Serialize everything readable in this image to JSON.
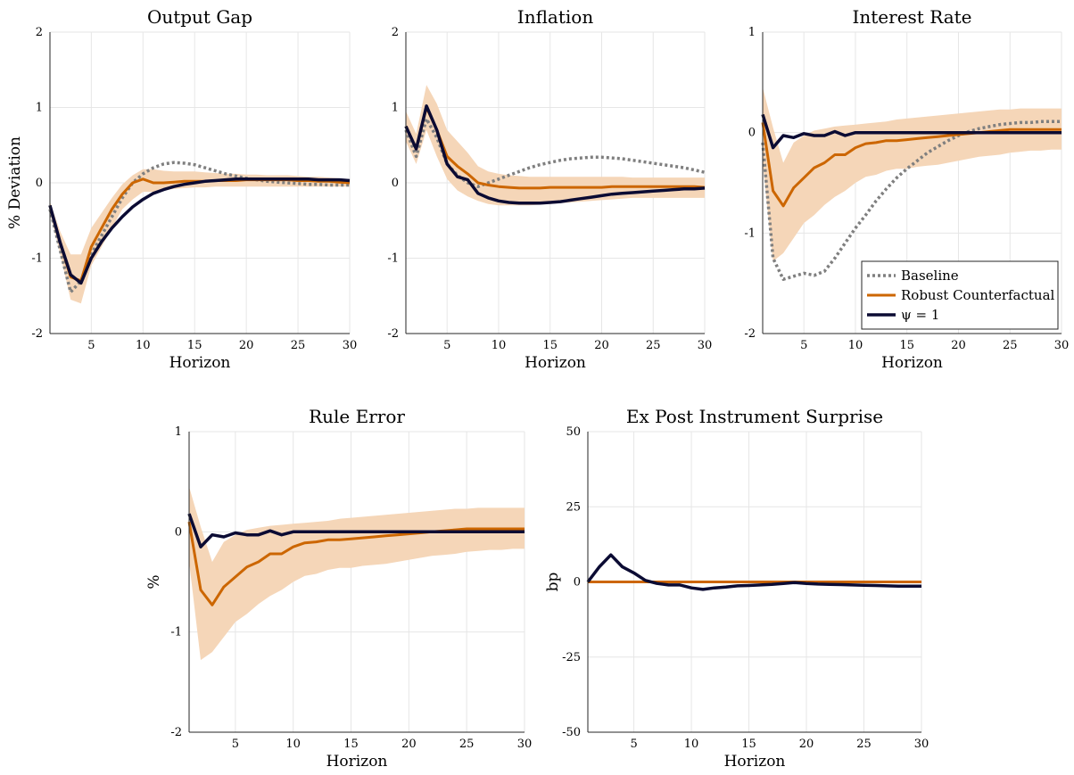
{
  "colors": {
    "baseline": "#7f7f7f",
    "robust": "#cc6600",
    "band": "#f5d6b8",
    "psi": "#0b0b33",
    "grid": "#e6e6e6",
    "axis": "#262626"
  },
  "legend": {
    "placement": "bottom-right of Interest Rate panel",
    "entries": [
      {
        "key": "baseline",
        "label": "Baseline"
      },
      {
        "key": "robust",
        "label": "Robust Counterfactual"
      },
      {
        "key": "psi",
        "label": "ψ = 1"
      }
    ]
  },
  "chart_data": [
    {
      "type": "line",
      "title": "Output Gap",
      "xlabel": "Horizon",
      "ylabel": "% Deviation",
      "xlim": [
        1,
        30
      ],
      "ylim": [
        -2,
        2
      ],
      "xticks": [
        5,
        10,
        15,
        20,
        25,
        30
      ],
      "yticks": [
        -2,
        -1,
        0,
        1,
        2
      ],
      "grid": true,
      "x": [
        1,
        2,
        3,
        4,
        5,
        6,
        7,
        8,
        9,
        10,
        11,
        12,
        13,
        14,
        15,
        16,
        17,
        18,
        19,
        20,
        21,
        22,
        23,
        24,
        25,
        26,
        27,
        28,
        29,
        30
      ],
      "series": [
        {
          "name": "Baseline",
          "key": "baseline",
          "values": [
            -0.35,
            -0.9,
            -1.45,
            -1.3,
            -0.95,
            -0.7,
            -0.45,
            -0.2,
            0.0,
            0.12,
            0.2,
            0.25,
            0.27,
            0.26,
            0.24,
            0.2,
            0.16,
            0.12,
            0.09,
            0.06,
            0.04,
            0.02,
            0.01,
            0.0,
            -0.01,
            -0.02,
            -0.02,
            -0.03,
            -0.03,
            -0.03
          ]
        },
        {
          "name": "Robust Counterfactual",
          "key": "robust",
          "values": [
            -0.3,
            -0.8,
            -1.25,
            -1.3,
            -0.85,
            -0.6,
            -0.35,
            -0.15,
            0.0,
            0.05,
            0.0,
            0.0,
            0.01,
            0.02,
            0.02,
            0.02,
            0.03,
            0.03,
            0.03,
            0.04,
            0.04,
            0.04,
            0.04,
            0.04,
            0.03,
            0.03,
            0.02,
            0.02,
            0.01,
            0.0
          ]
        },
        {
          "name": "ψ = 1",
          "key": "psi",
          "values": [
            -0.3,
            -0.8,
            -1.22,
            -1.33,
            -1.0,
            -0.78,
            -0.6,
            -0.45,
            -0.32,
            -0.22,
            -0.14,
            -0.09,
            -0.05,
            -0.02,
            0.0,
            0.02,
            0.03,
            0.04,
            0.05,
            0.05,
            0.05,
            0.05,
            0.05,
            0.05,
            0.05,
            0.05,
            0.04,
            0.04,
            0.04,
            0.03
          ]
        }
      ],
      "band": {
        "upper": [
          -0.25,
          -0.65,
          -0.95,
          -0.95,
          -0.6,
          -0.4,
          -0.2,
          -0.02,
          0.1,
          0.18,
          0.18,
          0.16,
          0.15,
          0.15,
          0.15,
          0.14,
          0.13,
          0.12,
          0.12,
          0.11,
          0.11,
          0.1,
          0.1,
          0.1,
          0.09,
          0.08,
          0.08,
          0.07,
          0.06,
          0.05
        ],
        "lower": [
          -0.4,
          -0.95,
          -1.55,
          -1.6,
          -1.1,
          -0.85,
          -0.6,
          -0.35,
          -0.22,
          -0.12,
          -0.12,
          -0.1,
          -0.08,
          -0.07,
          -0.06,
          -0.06,
          -0.05,
          -0.05,
          -0.05,
          -0.05,
          -0.05,
          -0.05,
          -0.05,
          -0.05,
          -0.05,
          -0.05,
          -0.05,
          -0.05,
          -0.05,
          -0.05
        ]
      }
    },
    {
      "type": "line",
      "title": "Inflation",
      "xlabel": "Horizon",
      "ylabel": "",
      "xlim": [
        1,
        30
      ],
      "ylim": [
        -2,
        2
      ],
      "xticks": [
        5,
        10,
        15,
        20,
        25,
        30
      ],
      "yticks": [
        -2,
        -1,
        0,
        1,
        2
      ],
      "grid": true,
      "x": [
        1,
        2,
        3,
        4,
        5,
        6,
        7,
        8,
        9,
        10,
        11,
        12,
        13,
        14,
        15,
        16,
        17,
        18,
        19,
        20,
        21,
        22,
        23,
        24,
        25,
        26,
        27,
        28,
        29,
        30
      ],
      "series": [
        {
          "name": "Baseline",
          "key": "baseline",
          "values": [
            0.7,
            0.35,
            0.85,
            0.6,
            0.25,
            0.1,
            0.0,
            -0.05,
            0.0,
            0.05,
            0.1,
            0.15,
            0.2,
            0.24,
            0.27,
            0.3,
            0.32,
            0.33,
            0.34,
            0.34,
            0.33,
            0.32,
            0.3,
            0.28,
            0.26,
            0.24,
            0.22,
            0.2,
            0.17,
            0.14
          ]
        },
        {
          "name": "Robust Counterfactual",
          "key": "robust",
          "values": [
            0.75,
            0.45,
            1.0,
            0.7,
            0.35,
            0.22,
            0.12,
            0.0,
            -0.03,
            -0.05,
            -0.06,
            -0.07,
            -0.07,
            -0.07,
            -0.06,
            -0.06,
            -0.06,
            -0.06,
            -0.06,
            -0.06,
            -0.05,
            -0.05,
            -0.05,
            -0.05,
            -0.05,
            -0.05,
            -0.05,
            -0.05,
            -0.05,
            -0.06
          ]
        },
        {
          "name": "ψ = 1",
          "key": "psi",
          "values": [
            0.75,
            0.45,
            1.02,
            0.7,
            0.25,
            0.08,
            0.04,
            -0.14,
            -0.2,
            -0.24,
            -0.26,
            -0.27,
            -0.27,
            -0.27,
            -0.26,
            -0.25,
            -0.23,
            -0.21,
            -0.19,
            -0.17,
            -0.15,
            -0.14,
            -0.13,
            -0.12,
            -0.11,
            -0.1,
            -0.09,
            -0.08,
            -0.08,
            -0.07
          ]
        }
      ],
      "band": {
        "upper": [
          0.95,
          0.65,
          1.3,
          1.05,
          0.7,
          0.55,
          0.4,
          0.22,
          0.15,
          0.12,
          0.1,
          0.09,
          0.08,
          0.08,
          0.08,
          0.08,
          0.08,
          0.08,
          0.08,
          0.08,
          0.08,
          0.08,
          0.07,
          0.07,
          0.07,
          0.07,
          0.07,
          0.07,
          0.07,
          0.07
        ],
        "lower": [
          0.55,
          0.25,
          0.7,
          0.35,
          0.05,
          -0.1,
          -0.18,
          -0.24,
          -0.28,
          -0.3,
          -0.3,
          -0.3,
          -0.3,
          -0.29,
          -0.28,
          -0.27,
          -0.26,
          -0.25,
          -0.24,
          -0.23,
          -0.22,
          -0.21,
          -0.2,
          -0.2,
          -0.2,
          -0.2,
          -0.2,
          -0.2,
          -0.2,
          -0.2
        ]
      }
    },
    {
      "type": "line",
      "title": "Interest Rate",
      "xlabel": "Horizon",
      "ylabel": "",
      "xlim": [
        1,
        30
      ],
      "ylim": [
        -2,
        1
      ],
      "xticks": [
        5,
        10,
        15,
        20,
        25,
        30
      ],
      "yticks": [
        -2,
        -1,
        0,
        1
      ],
      "grid": true,
      "x": [
        1,
        2,
        3,
        4,
        5,
        6,
        7,
        8,
        9,
        10,
        11,
        12,
        13,
        14,
        15,
        16,
        17,
        18,
        19,
        20,
        21,
        22,
        23,
        24,
        25,
        26,
        27,
        28,
        29,
        30
      ],
      "series": [
        {
          "name": "Baseline",
          "key": "baseline",
          "values": [
            -0.1,
            -1.25,
            -1.46,
            -1.43,
            -1.4,
            -1.42,
            -1.38,
            -1.25,
            -1.1,
            -0.95,
            -0.82,
            -0.68,
            -0.56,
            -0.45,
            -0.36,
            -0.28,
            -0.2,
            -0.14,
            -0.08,
            -0.03,
            0.01,
            0.04,
            0.06,
            0.08,
            0.09,
            0.1,
            0.1,
            0.11,
            0.11,
            0.11
          ]
        },
        {
          "name": "Robust Counterfactual",
          "key": "robust",
          "values": [
            0.1,
            -0.58,
            -0.73,
            -0.55,
            -0.45,
            -0.35,
            -0.3,
            -0.22,
            -0.22,
            -0.15,
            -0.11,
            -0.1,
            -0.08,
            -0.08,
            -0.07,
            -0.06,
            -0.05,
            -0.04,
            -0.03,
            -0.02,
            -0.01,
            0.0,
            0.01,
            0.02,
            0.03,
            0.03,
            0.03,
            0.03,
            0.03,
            0.03
          ]
        },
        {
          "name": "ψ = 1",
          "key": "psi",
          "values": [
            0.18,
            -0.15,
            -0.03,
            -0.05,
            -0.01,
            -0.03,
            -0.03,
            0.01,
            -0.03,
            0.0,
            0.0,
            0.0,
            0.0,
            0.0,
            0.0,
            0.0,
            0.0,
            0.0,
            0.0,
            0.0,
            0.0,
            0.0,
            0.0,
            0.0,
            0.0,
            0.0,
            0.0,
            0.0,
            0.0,
            0.0
          ]
        }
      ],
      "band": {
        "upper": [
          0.45,
          0.05,
          -0.3,
          -0.1,
          -0.03,
          0.02,
          0.04,
          0.06,
          0.07,
          0.08,
          0.09,
          0.1,
          0.11,
          0.13,
          0.14,
          0.15,
          0.16,
          0.17,
          0.18,
          0.19,
          0.2,
          0.21,
          0.22,
          0.23,
          0.23,
          0.24,
          0.24,
          0.24,
          0.24,
          0.24
        ],
        "lower": [
          -0.3,
          -1.28,
          -1.2,
          -1.05,
          -0.9,
          -0.82,
          -0.72,
          -0.64,
          -0.58,
          -0.5,
          -0.44,
          -0.42,
          -0.38,
          -0.36,
          -0.36,
          -0.34,
          -0.33,
          -0.32,
          -0.3,
          -0.28,
          -0.26,
          -0.24,
          -0.23,
          -0.22,
          -0.2,
          -0.19,
          -0.18,
          -0.18,
          -0.17,
          -0.17
        ]
      }
    },
    {
      "type": "line",
      "title": "Rule Error",
      "xlabel": "Horizon",
      "ylabel": "%",
      "xlim": [
        1,
        30
      ],
      "ylim": [
        -2,
        1
      ],
      "xticks": [
        5,
        10,
        15,
        20,
        25,
        30
      ],
      "yticks": [
        -2,
        -1,
        0,
        1
      ],
      "grid": true,
      "x": [
        1,
        2,
        3,
        4,
        5,
        6,
        7,
        8,
        9,
        10,
        11,
        12,
        13,
        14,
        15,
        16,
        17,
        18,
        19,
        20,
        21,
        22,
        23,
        24,
        25,
        26,
        27,
        28,
        29,
        30
      ],
      "series": [
        {
          "name": "Robust Counterfactual",
          "key": "robust",
          "values": [
            0.1,
            -0.58,
            -0.73,
            -0.55,
            -0.45,
            -0.35,
            -0.3,
            -0.22,
            -0.22,
            -0.15,
            -0.11,
            -0.1,
            -0.08,
            -0.08,
            -0.07,
            -0.06,
            -0.05,
            -0.04,
            -0.03,
            -0.02,
            -0.01,
            0.0,
            0.01,
            0.02,
            0.03,
            0.03,
            0.03,
            0.03,
            0.03,
            0.03
          ]
        },
        {
          "name": "ψ = 1",
          "key": "psi",
          "values": [
            0.18,
            -0.15,
            -0.03,
            -0.05,
            -0.01,
            -0.03,
            -0.03,
            0.01,
            -0.03,
            0.0,
            0.0,
            0.0,
            0.0,
            0.0,
            0.0,
            0.0,
            0.0,
            0.0,
            0.0,
            0.0,
            0.0,
            0.0,
            0.0,
            0.0,
            0.0,
            0.0,
            0.0,
            0.0,
            0.0,
            0.0
          ]
        }
      ],
      "band": {
        "upper": [
          0.45,
          0.05,
          -0.3,
          -0.1,
          -0.03,
          0.02,
          0.04,
          0.06,
          0.07,
          0.08,
          0.09,
          0.1,
          0.11,
          0.13,
          0.14,
          0.15,
          0.16,
          0.17,
          0.18,
          0.19,
          0.2,
          0.21,
          0.22,
          0.23,
          0.23,
          0.24,
          0.24,
          0.24,
          0.24,
          0.24
        ],
        "lower": [
          -0.3,
          -1.28,
          -1.2,
          -1.05,
          -0.9,
          -0.82,
          -0.72,
          -0.64,
          -0.58,
          -0.5,
          -0.44,
          -0.42,
          -0.38,
          -0.36,
          -0.36,
          -0.34,
          -0.33,
          -0.32,
          -0.3,
          -0.28,
          -0.26,
          -0.24,
          -0.23,
          -0.22,
          -0.2,
          -0.19,
          -0.18,
          -0.18,
          -0.17,
          -0.17
        ]
      }
    },
    {
      "type": "line",
      "title": "Ex Post Instrument Surprise",
      "xlabel": "Horizon",
      "ylabel": "bp",
      "xlim": [
        1,
        30
      ],
      "ylim": [
        -50,
        50
      ],
      "xticks": [
        5,
        10,
        15,
        20,
        25,
        30
      ],
      "yticks": [
        -50,
        -25,
        0,
        25,
        50
      ],
      "grid": true,
      "x": [
        1,
        2,
        3,
        4,
        5,
        6,
        7,
        8,
        9,
        10,
        11,
        12,
        13,
        14,
        15,
        16,
        17,
        18,
        19,
        20,
        21,
        22,
        23,
        24,
        25,
        26,
        27,
        28,
        29,
        30
      ],
      "series": [
        {
          "name": "Robust Counterfactual",
          "key": "robust",
          "values": [
            0,
            0,
            0,
            0,
            0,
            0,
            0,
            0,
            0,
            0,
            0,
            0,
            0,
            0,
            0,
            0,
            0,
            0,
            0,
            0,
            0,
            0,
            0,
            0,
            0,
            0,
            0,
            0,
            0,
            0
          ]
        },
        {
          "name": "ψ = 1",
          "key": "psi",
          "values": [
            0,
            5,
            9,
            5,
            3,
            0.5,
            -0.5,
            -1,
            -1,
            -2,
            -2.5,
            -2,
            -1.7,
            -1.3,
            -1.2,
            -1,
            -0.8,
            -0.5,
            -0.2,
            -0.5,
            -0.7,
            -0.8,
            -0.9,
            -1,
            -1.1,
            -1.2,
            -1.3,
            -1.4,
            -1.4,
            -1.4
          ]
        }
      ],
      "band": null
    }
  ]
}
